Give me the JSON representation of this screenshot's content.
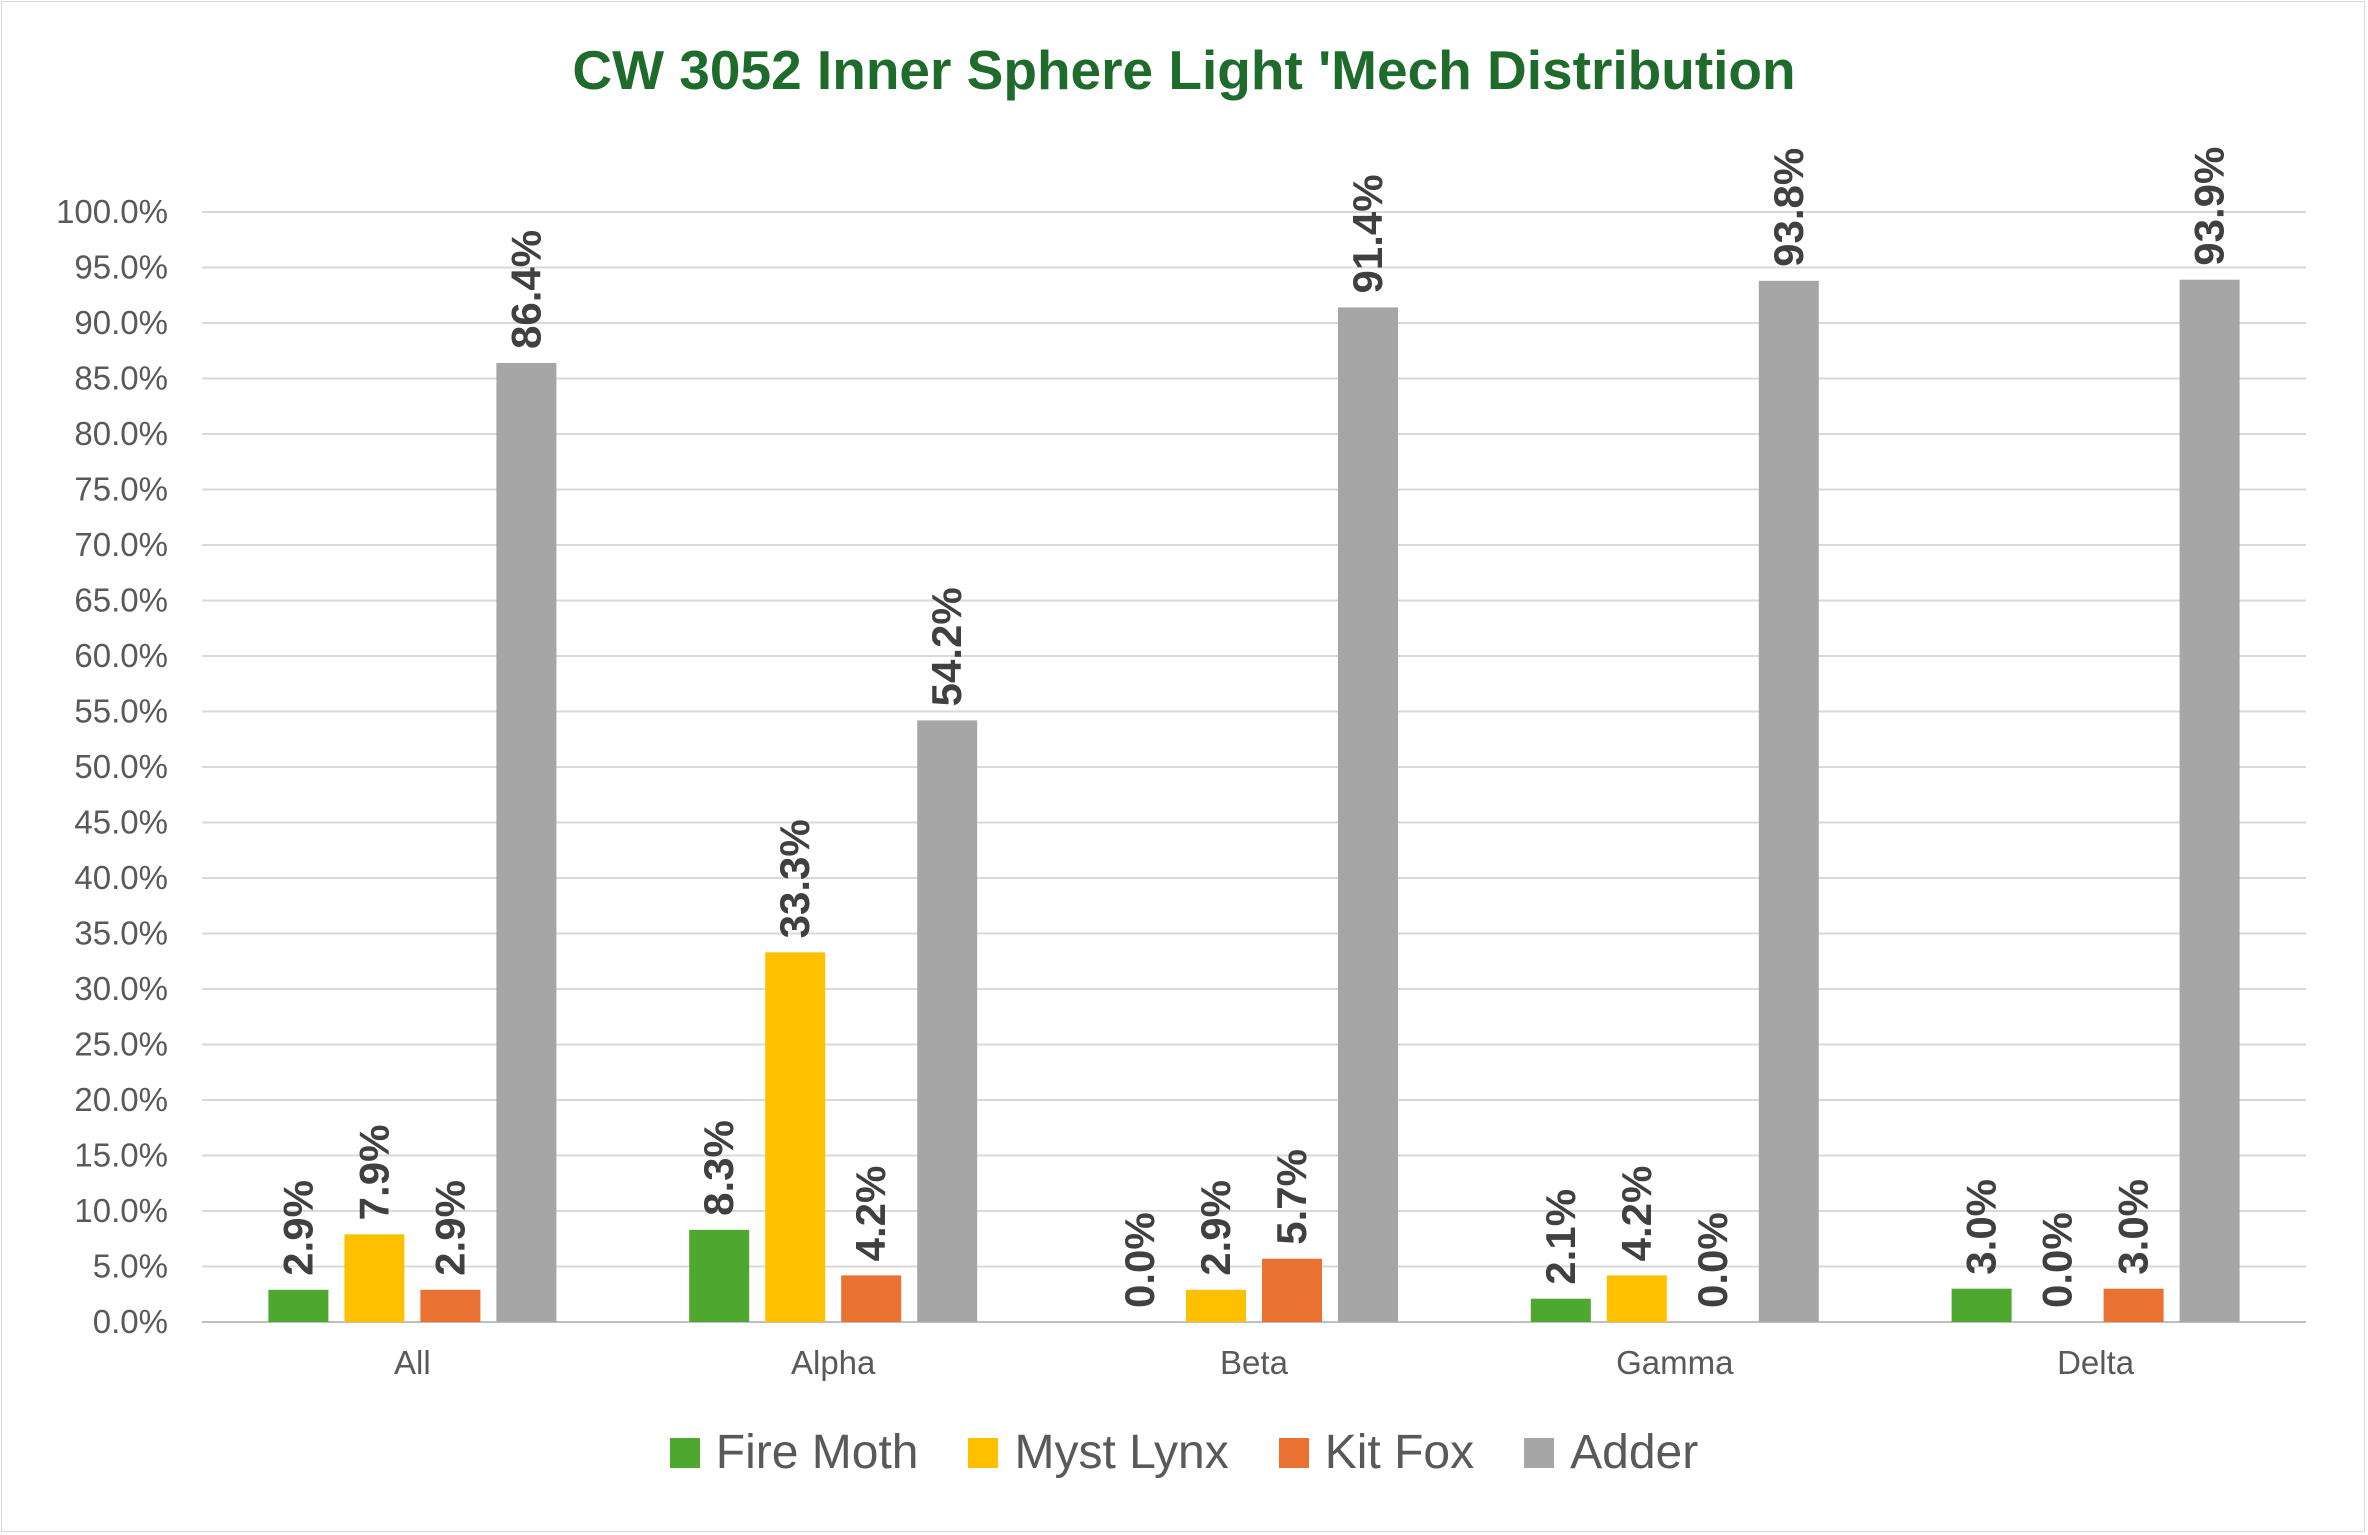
{
  "chart_data": {
    "type": "bar",
    "title": "CW 3052 Inner Sphere Light 'Mech Distribution",
    "categories": [
      "All",
      "Alpha",
      "Beta",
      "Gamma",
      "Delta"
    ],
    "series": [
      {
        "name": "Fire Moth",
        "color": "#4ea72e",
        "values": [
          2.9,
          8.3,
          0.0,
          2.1,
          3.0
        ],
        "labels": [
          "2.9%",
          "8.3%",
          "0.0%",
          "2.1%",
          "3.0%"
        ]
      },
      {
        "name": "Myst Lynx",
        "color": "#ffc000",
        "values": [
          7.9,
          33.3,
          2.9,
          4.2,
          0.0
        ],
        "labels": [
          "7.9%",
          "33.3%",
          "2.9%",
          "4.2%",
          "0.0%"
        ]
      },
      {
        "name": "Kit Fox",
        "color": "#e97132",
        "values": [
          2.9,
          4.2,
          5.7,
          0.0,
          3.0
        ],
        "labels": [
          "2.9%",
          "4.2%",
          "5.7%",
          "0.0%",
          "3.0%"
        ]
      },
      {
        "name": "Adder",
        "color": "#a6a6a6",
        "values": [
          86.4,
          54.2,
          91.4,
          93.8,
          93.9
        ],
        "labels": [
          "86.4%",
          "54.2%",
          "91.4%",
          "93.8%",
          "93.9%"
        ]
      }
    ],
    "yticks": [
      "0.0%",
      "5.0%",
      "10.0%",
      "15.0%",
      "20.0%",
      "25.0%",
      "30.0%",
      "35.0%",
      "40.0%",
      "45.0%",
      "50.0%",
      "55.0%",
      "60.0%",
      "65.0%",
      "70.0%",
      "75.0%",
      "80.0%",
      "85.0%",
      "90.0%",
      "95.0%",
      "100.0%"
    ],
    "ylim": [
      0,
      100
    ],
    "grid": true,
    "legend_position": "bottom"
  }
}
